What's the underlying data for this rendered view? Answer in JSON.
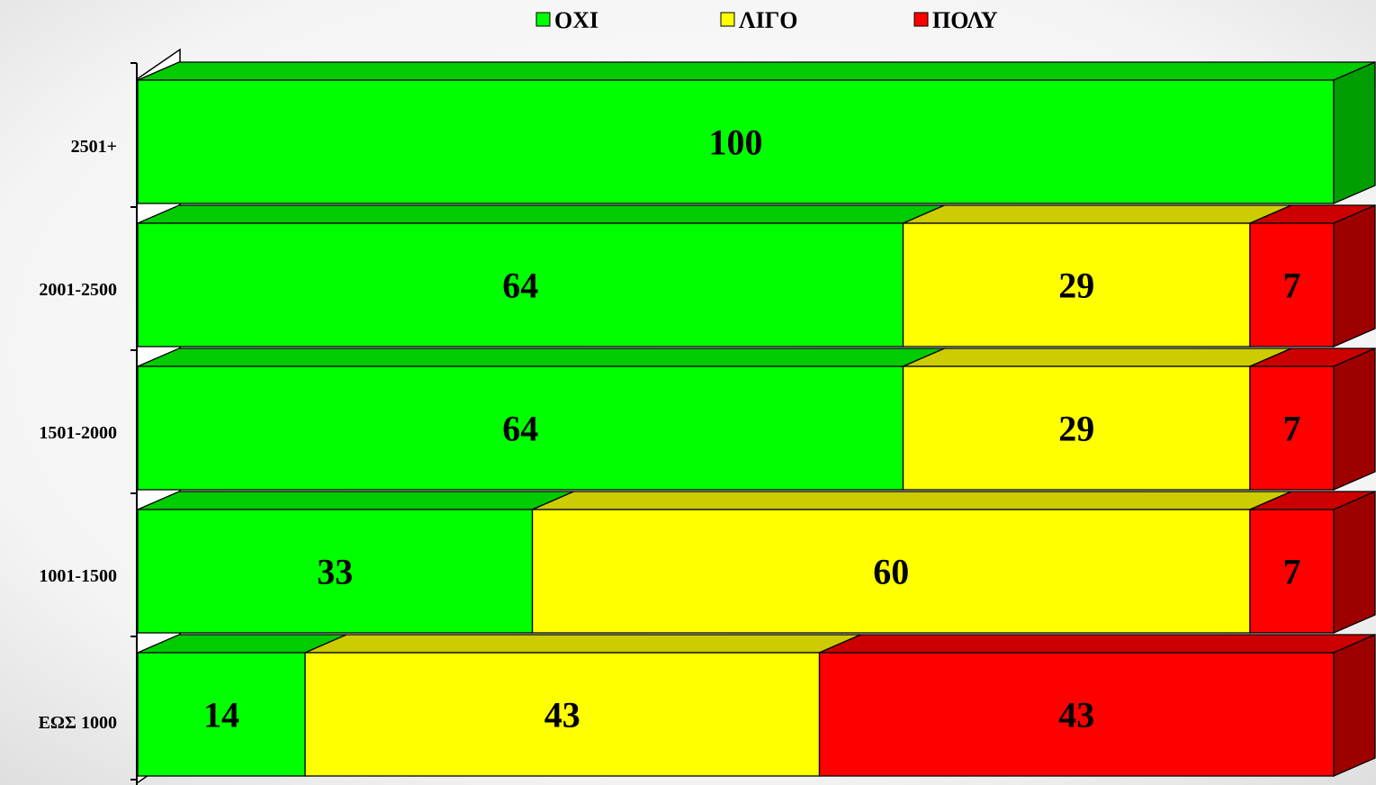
{
  "chart_data": {
    "type": "bar",
    "orientation": "horizontal",
    "stacked": "percent",
    "three_d": true,
    "categories": [
      "2501+",
      "2001-2500",
      "1501-2000",
      "1001-1500",
      "ΕΩΣ 1000"
    ],
    "series": [
      {
        "name": "ΟΧΙ",
        "values": [
          100,
          64,
          64,
          33,
          14
        ],
        "color": "#00ff00"
      },
      {
        "name": "ΛΙΓΟ",
        "values": [
          0,
          29,
          29,
          60,
          43
        ],
        "color": "#ffff00"
      },
      {
        "name": "ΠΟΛΥ",
        "values": [
          0,
          7,
          7,
          7,
          43
        ],
        "color": "#ff0000"
      }
    ],
    "legend_position": "top",
    "grid": false,
    "xlim": [
      0,
      100
    ]
  },
  "colors": {
    "background_center": "#ffffff",
    "background_edge": "#e6e6e6"
  }
}
